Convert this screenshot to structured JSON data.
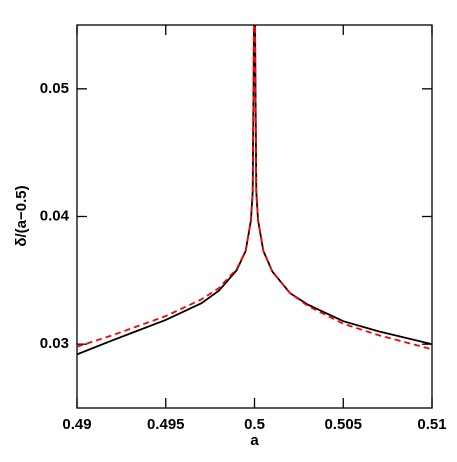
{
  "chart_data": {
    "type": "line",
    "xlabel": "a",
    "ylabel": "δ/(a−0.5)",
    "x": [
      0.49,
      0.492,
      0.495,
      0.497,
      0.498,
      0.499,
      0.4995,
      0.4998,
      0.4999,
      0.49997,
      0.50003,
      0.5001,
      0.5002,
      0.5005,
      0.501,
      0.502,
      0.503,
      0.505,
      0.507,
      0.51
    ],
    "series": [
      {
        "color": "#000000",
        "dash": "solid",
        "values": [
          0.0292,
          0.0303,
          0.0319,
          0.0332,
          0.0342,
          0.0358,
          0.0373,
          0.0397,
          0.042,
          0.055,
          0.055,
          0.042,
          0.0397,
          0.0373,
          0.0357,
          0.034,
          0.0331,
          0.0318,
          0.031,
          0.03
        ]
      },
      {
        "color": "#ff0000",
        "dash": "dashed",
        "values": [
          0.0298,
          0.0307,
          0.0322,
          0.0335,
          0.0344,
          0.0359,
          0.0373,
          0.0397,
          0.042,
          0.055,
          0.055,
          0.042,
          0.0397,
          0.0373,
          0.0357,
          0.034,
          0.033,
          0.0316,
          0.0307,
          0.0296
        ]
      }
    ],
    "xlim": [
      0.49,
      0.51
    ],
    "xticks": [
      0.49,
      0.495,
      0.5,
      0.505,
      0.51
    ],
    "ylim": [
      0.025,
      0.055
    ],
    "yticks": [
      0.03,
      0.04,
      0.05
    ]
  }
}
